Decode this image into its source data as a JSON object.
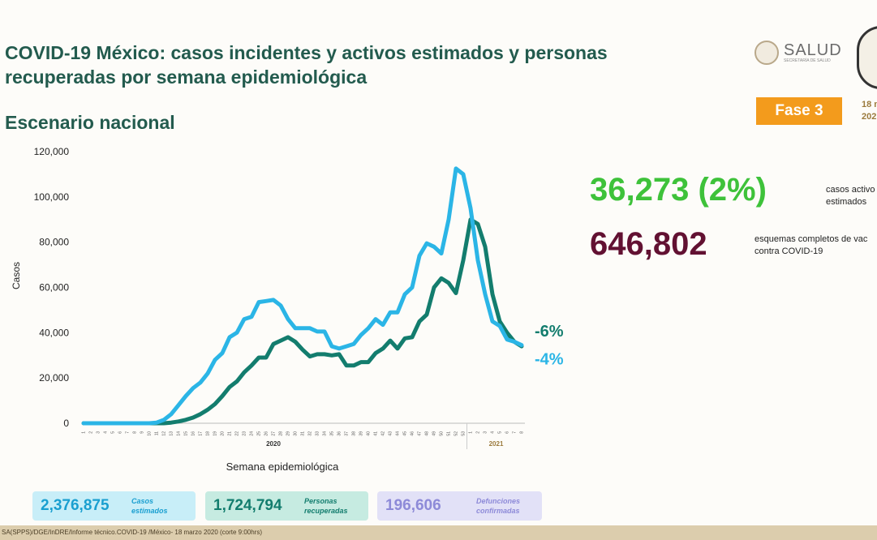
{
  "header": {
    "title_line1": "COVID-19 México: casos incidentes y activos estimados y personas",
    "title_line2": "recuperadas por semana epidemiológica",
    "subtitle": "Escenario nacional",
    "logo_text": "SALUD",
    "logo_subtext": "SECRETARÍA DE SALUD",
    "phase": "Fase 3",
    "date_line1": "18 m",
    "date_line2": "202"
  },
  "kpis": [
    {
      "value": "36,273 (2%)",
      "desc_line1": "casos activo",
      "desc_line2": "estimados"
    },
    {
      "value": "646,802",
      "desc_line1": "esquemas completos de vac",
      "desc_line2": "contra COVID-19"
    }
  ],
  "summary": [
    {
      "value": "2,376,875",
      "label": "Casos estimados"
    },
    {
      "value": "1,724,794",
      "label": "Personas recuperadas"
    },
    {
      "value": "196,606",
      "label": "Defunciones confirmadas"
    }
  ],
  "footer": "SA(SPPS)/DGE/InDRE/Informe técnico.COVID-19 /México- 18 marzo 2020 (corte 9:00hrs)",
  "chart_data": {
    "type": "line",
    "y_label": "Casos",
    "x_label": "Semana epidemiológica",
    "year_labels": [
      "2020",
      "2021"
    ],
    "categories": [
      "1",
      "2",
      "3",
      "4",
      "5",
      "6",
      "7",
      "8",
      "9",
      "10",
      "11",
      "12",
      "13",
      "14",
      "15",
      "16",
      "17",
      "18",
      "19",
      "20",
      "21",
      "22",
      "23",
      "24",
      "25",
      "26",
      "27",
      "28",
      "29",
      "30",
      "31",
      "32",
      "33",
      "34",
      "35",
      "36",
      "37",
      "38",
      "39",
      "40",
      "41",
      "42",
      "43",
      "44",
      "45",
      "46",
      "47",
      "48",
      "49",
      "50",
      "51",
      "52",
      "53",
      "1",
      "2",
      "3",
      "4",
      "5",
      "6",
      "7",
      "8"
    ],
    "ylim": [
      0,
      120000
    ],
    "yticks": [
      0,
      {
        "value": 20000,
        "label": "20,000"
      },
      {
        "value": 40000,
        "label": "40,000"
      },
      {
        "value": 60000,
        "label": "60,000"
      },
      {
        "value": 80000,
        "label": "80,000"
      },
      {
        "value": 100000,
        "label": "100,000"
      },
      {
        "value": 120000,
        "label": "120,000"
      }
    ],
    "grid": false,
    "series": [
      {
        "color": "#2bb5e6",
        "end_label": "-4%",
        "values": [
          0,
          0,
          0,
          0,
          0,
          0,
          0,
          0,
          0,
          0,
          300,
          1500,
          4000,
          8000,
          12000,
          15500,
          18000,
          22000,
          28000,
          31000,
          38000,
          40000,
          46000,
          47000,
          53500,
          54000,
          54500,
          52000,
          46000,
          42000,
          42000,
          42000,
          40500,
          40500,
          34000,
          33000,
          34000,
          35000,
          39000,
          42000,
          46000,
          43500,
          49000,
          49000,
          57000,
          60000,
          74000,
          79500,
          78000,
          75000,
          90000,
          112500,
          110000,
          95000,
          72000,
          57000,
          45000,
          43000,
          37000,
          36000,
          34500
        ]
      },
      {
        "color": "#137d6e",
        "end_label": "-6%",
        "values": [
          0,
          0,
          0,
          0,
          0,
          0,
          0,
          0,
          0,
          0,
          0,
          0,
          300,
          800,
          1500,
          2500,
          4000,
          6000,
          8500,
          12000,
          16000,
          18500,
          22500,
          25500,
          29000,
          29000,
          35000,
          36500,
          38000,
          36000,
          32500,
          29500,
          30500,
          30500,
          30000,
          30500,
          25500,
          25500,
          27000,
          27000,
          31000,
          33000,
          36500,
          33000,
          37500,
          38000,
          45000,
          48000,
          60000,
          64000,
          62000,
          57500,
          72000,
          90000,
          88000,
          78000,
          57000,
          45000,
          40000,
          36000,
          34000
        ]
      }
    ]
  }
}
